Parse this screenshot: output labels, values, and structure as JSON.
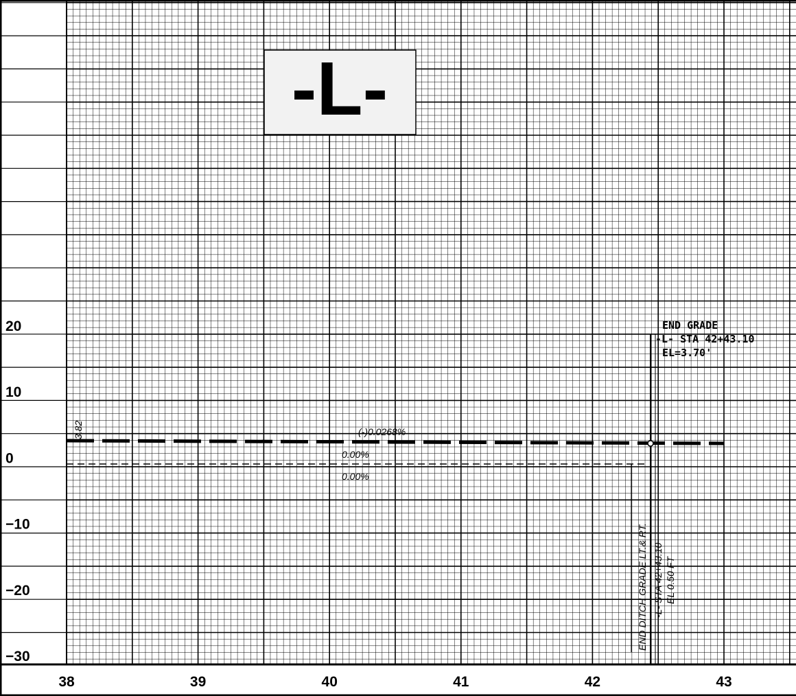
{
  "title": "-L-",
  "y_labels": [
    "20",
    "10",
    "0",
    "−10",
    "−20",
    "−30"
  ],
  "x_labels": [
    "38",
    "39",
    "40",
    "41",
    "42",
    "43"
  ],
  "annotations": {
    "end_grade": [
      "END GRADE",
      "-L- STA 42+43.10",
      "EL=3.70'"
    ],
    "begin_elevation": "3.82",
    "profile_grade": "(-)0.0268%",
    "ditch_grade_upper": "0.00%",
    "ditch_grade_lower": "0.00%",
    "end_ditch": [
      "END DITCH GRADE LT.& RT.",
      "-L- STA 42+43.10",
      "EL 0.50 FT"
    ]
  }
}
